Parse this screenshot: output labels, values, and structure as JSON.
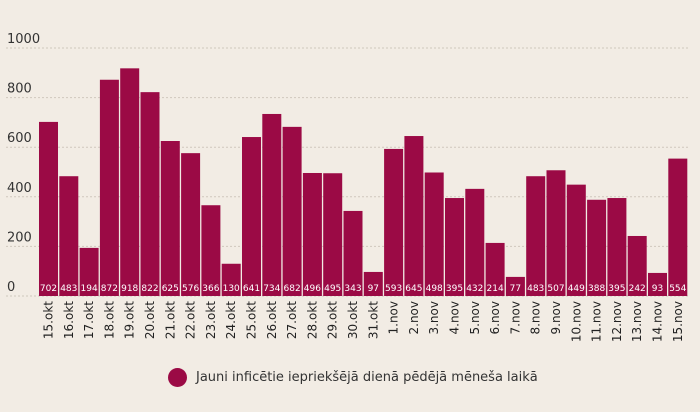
{
  "chart_data": {
    "type": "bar",
    "categories": [
      "15.okt",
      "16.okt",
      "17.okt",
      "18.okt",
      "19.okt",
      "20.okt",
      "21.okt",
      "22.okt",
      "23.okt",
      "24.okt",
      "25.okt",
      "26.okt",
      "27.okt",
      "28.okt",
      "29.okt",
      "30.okt",
      "31.okt",
      "1.nov",
      "2.nov",
      "3.nov",
      "4.nov",
      "5.nov",
      "6.nov",
      "7.nov",
      "8.nov",
      "9.nov",
      "10.nov",
      "11.nov",
      "12.nov",
      "13.nov",
      "14.nov",
      "15.nov"
    ],
    "series": [
      {
        "name": "Jauni inficētie iepriekšējā dienā pēdējā mēneša laikā",
        "values": [
          702,
          483,
          194,
          872,
          918,
          822,
          625,
          576,
          366,
          130,
          641,
          734,
          682,
          496,
          495,
          343,
          97,
          593,
          645,
          498,
          395,
          432,
          214,
          77,
          483,
          507,
          449,
          388,
          395,
          242,
          93,
          554
        ]
      }
    ],
    "yticks": [
      0,
      200,
      400,
      600,
      800,
      1000
    ],
    "ylim": [
      0,
      1000
    ],
    "grid": true,
    "legend_position": "bottom-center",
    "bar_color": "#9b0a45",
    "background_color": "#f2ece4"
  },
  "legend": {
    "label": "Jauni inficētie iepriekšējā dienā pēdējā mēneša laikā"
  }
}
